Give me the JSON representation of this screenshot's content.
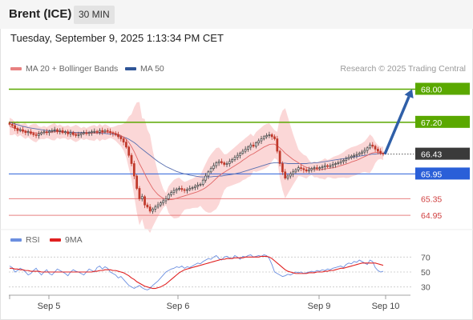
{
  "header": {
    "instrument": "Brent (ICE)",
    "interval": "30 MIN"
  },
  "timestamp": "Tuesday, September 9, 2025 1:13:34 PM CET",
  "legend": {
    "ma20": "MA 20 + Bollinger Bands",
    "ma50": "MA 50"
  },
  "research": "Research © 2025 Trading Central",
  "rsi_legend": {
    "rsi": "RSI",
    "ma9": "9MA"
  },
  "colors": {
    "green": "#5aa800",
    "blue": "#2a5fd8",
    "red_line": "#e88080",
    "current": "#3a3a3a",
    "candle_up": "#3f3f3f",
    "candle_down": "#c0392b",
    "bollinger": "#f9c9c9",
    "ma20": "#e06666",
    "ma50": "#5a70b0",
    "rsi": "#6b8fe0",
    "rsi_ma": "#e02020"
  },
  "chart_data": [
    {
      "type": "candlestick",
      "x_labels": [
        "Sep 5",
        "Sep 6",
        "Sep 9",
        "Sep 10"
      ],
      "ylim": [
        64.7,
        68.3
      ],
      "levels": [
        {
          "value": 68.0,
          "label": "68.00",
          "kind": "resistance"
        },
        {
          "value": 67.2,
          "label": "67.20",
          "kind": "resistance"
        },
        {
          "value": 66.43,
          "label": "66.43",
          "kind": "current"
        },
        {
          "value": 65.95,
          "label": "65.95",
          "kind": "pivot"
        },
        {
          "value": 65.35,
          "label": "65.35",
          "kind": "support"
        },
        {
          "value": 64.95,
          "label": "64.95",
          "kind": "support"
        }
      ],
      "close": [
        67.15,
        67.12,
        67.05,
        67.0,
        67.02,
        66.98,
        66.95,
        66.97,
        66.93,
        66.9,
        66.88,
        66.92,
        66.95,
        66.97,
        66.95,
        66.98,
        67.0,
        67.02,
        66.98,
        67.0,
        66.95,
        66.97,
        66.92,
        66.95,
        66.9,
        66.88,
        66.9,
        66.93,
        66.95,
        66.93,
        66.95,
        66.97,
        66.98,
        66.96,
        67.0,
        66.97,
        67.0,
        66.98,
        66.95,
        66.93,
        66.9,
        66.85,
        66.8,
        66.72,
        66.6,
        66.4,
        66.2,
        65.9,
        65.6,
        65.35,
        65.4,
        65.2,
        65.15,
        65.05,
        65.1,
        65.15,
        65.2,
        65.25,
        65.3,
        65.35,
        65.45,
        65.5,
        65.55,
        65.58,
        65.6,
        65.57,
        65.55,
        65.57,
        65.6,
        65.62,
        65.65,
        65.68,
        65.7,
        65.8,
        65.9,
        66.0,
        66.08,
        66.15,
        66.22,
        66.25,
        66.22,
        66.18,
        66.2,
        66.25,
        66.3,
        66.35,
        66.4,
        66.45,
        66.5,
        66.55,
        66.6,
        66.65,
        66.62,
        66.7,
        66.75,
        66.8,
        66.85,
        66.88,
        66.9,
        66.85,
        66.8,
        66.5,
        66.2,
        66.0,
        65.85,
        65.9,
        65.95,
        66.0,
        66.05,
        66.1,
        66.08,
        66.05,
        66.02,
        66.05,
        66.08,
        66.1,
        66.08,
        66.1,
        66.12,
        66.15,
        66.13,
        66.15,
        66.18,
        66.2,
        66.22,
        66.25,
        66.28,
        66.32,
        66.35,
        66.38,
        66.4,
        66.42,
        66.45,
        66.48,
        66.52,
        66.58,
        66.65,
        66.62,
        66.55,
        66.5,
        66.45,
        66.43
      ],
      "projection": {
        "from": 66.43,
        "to": 68.0
      },
      "ma20": [
        67.1,
        67.08,
        67.06,
        67.04,
        67.02,
        67.0,
        66.99,
        66.97,
        66.96,
        66.95,
        66.94,
        66.94,
        66.94,
        66.95,
        66.95,
        66.96,
        66.96,
        66.97,
        66.97,
        66.97,
        66.96,
        66.96,
        66.95,
        66.94,
        66.93,
        66.93,
        66.93,
        66.93,
        66.93,
        66.93,
        66.93,
        66.94,
        66.94,
        66.95,
        66.95,
        66.95,
        66.96,
        66.96,
        66.95,
        66.94,
        66.93,
        66.91,
        66.88,
        66.84,
        66.79,
        66.71,
        66.61,
        66.49,
        66.35,
        66.2,
        66.08,
        65.95,
        65.82,
        65.71,
        65.6,
        65.52,
        65.45,
        65.4,
        65.36,
        65.34,
        65.33,
        65.33,
        65.34,
        65.36,
        65.38,
        65.4,
        65.42,
        65.44,
        65.46,
        65.48,
        65.5,
        65.52,
        65.55,
        65.58,
        65.62,
        65.67,
        65.72,
        65.78,
        65.84,
        65.9,
        65.95,
        65.99,
        66.03,
        66.07,
        66.11,
        66.15,
        66.19,
        66.23,
        66.28,
        66.32,
        66.37,
        66.41,
        66.44,
        66.48,
        66.52,
        66.56,
        66.6,
        66.63,
        66.66,
        66.67,
        66.67,
        66.63,
        66.58,
        66.52,
        66.45,
        66.4,
        66.35,
        66.3,
        66.26,
        66.22,
        66.18,
        66.14,
        66.11,
        66.09,
        66.07,
        66.06,
        66.05,
        66.05,
        66.06,
        66.07,
        66.08,
        66.09,
        66.1,
        66.11,
        66.13,
        66.15,
        66.17,
        66.19,
        66.21,
        66.24,
        66.26,
        66.28,
        66.31,
        66.34,
        66.37,
        66.4,
        66.44,
        66.46,
        66.47,
        66.47,
        66.46,
        66.45
      ],
      "ma50": [
        67.2,
        67.18,
        67.16,
        67.14,
        67.12,
        67.1,
        67.09,
        67.07,
        67.06,
        67.05,
        67.04,
        67.03,
        67.02,
        67.01,
        67.0,
        67.0,
        66.99,
        66.99,
        66.98,
        66.98,
        66.97,
        66.97,
        66.96,
        66.96,
        66.96,
        66.95,
        66.95,
        66.95,
        66.95,
        66.95,
        66.95,
        66.95,
        66.94,
        66.94,
        66.94,
        66.93,
        66.93,
        66.92,
        66.92,
        66.91,
        66.9,
        66.88,
        66.86,
        66.84,
        66.82,
        66.79,
        66.75,
        66.71,
        66.66,
        66.6,
        66.55,
        66.5,
        66.45,
        66.4,
        66.35,
        66.3,
        66.25,
        66.21,
        66.17,
        66.13,
        66.1,
        66.07,
        66.04,
        66.01,
        65.99,
        65.97,
        65.95,
        65.94,
        65.92,
        65.91,
        65.9,
        65.89,
        65.88,
        65.88,
        65.88,
        65.88,
        65.88,
        65.89,
        65.89,
        65.9,
        65.9,
        65.91,
        65.92,
        65.93,
        65.94,
        65.95,
        65.97,
        65.98,
        66.0,
        66.02,
        66.04,
        66.06,
        66.08,
        66.1,
        66.12,
        66.14,
        66.16,
        66.18,
        66.2,
        66.21,
        66.22,
        66.22,
        66.22,
        66.21,
        66.21,
        66.2,
        66.2,
        66.2,
        66.2,
        66.2,
        66.2,
        66.2,
        66.2,
        66.21,
        66.21,
        66.22,
        66.22,
        66.23,
        66.24,
        66.25,
        66.26,
        66.27,
        66.28,
        66.29,
        66.3,
        66.31,
        66.32,
        66.33,
        66.34,
        66.35,
        66.36,
        66.37,
        66.38,
        66.39,
        66.4,
        66.41,
        66.42,
        66.43,
        66.43,
        66.44,
        66.44,
        66.44
      ]
    },
    {
      "type": "line",
      "name": "RSI",
      "yticks": [
        70,
        50,
        30
      ],
      "ylim": [
        20,
        80
      ],
      "series": [
        {
          "name": "RSI",
          "values": [
            58,
            56,
            50,
            52,
            55,
            53,
            50,
            46,
            48,
            52,
            55,
            50,
            46,
            50,
            53,
            48,
            46,
            50,
            54,
            52,
            50,
            48,
            45,
            50,
            53,
            51,
            50,
            48,
            46,
            50,
            54,
            52,
            50,
            56,
            58,
            54,
            57,
            55,
            50,
            48,
            46,
            42,
            44,
            40,
            36,
            32,
            30,
            28,
            30,
            32,
            29,
            27,
            26,
            28,
            32,
            35,
            38,
            42,
            46,
            50,
            52,
            54,
            55,
            57,
            56,
            58,
            55,
            57,
            56,
            58,
            60,
            62,
            61,
            64,
            66,
            68,
            67,
            70,
            72,
            68,
            66,
            70,
            71,
            69,
            68,
            72,
            70,
            67,
            71,
            70,
            72,
            73,
            70,
            71,
            72,
            71,
            73,
            72,
            68,
            60,
            50,
            48,
            46,
            44,
            45,
            47,
            46,
            48,
            50,
            49,
            50,
            48,
            49,
            50,
            51,
            50,
            52,
            51,
            53,
            52,
            54,
            53,
            55,
            56,
            57,
            58,
            56,
            60,
            62,
            61,
            64,
            63,
            66,
            64,
            62,
            60,
            66,
            64,
            56,
            52,
            50,
            51
          ]
        },
        {
          "name": "9MA",
          "values": [
            55,
            55,
            54,
            54,
            53,
            53,
            52,
            52,
            51,
            51,
            51,
            51,
            50,
            50,
            50,
            50,
            50,
            50,
            50,
            50,
            50,
            50,
            50,
            50,
            50,
            50,
            50,
            50,
            50,
            50,
            50,
            50,
            51,
            51,
            52,
            52,
            53,
            53,
            53,
            52,
            52,
            51,
            50,
            49,
            47,
            45,
            42,
            40,
            37,
            35,
            33,
            31,
            30,
            29,
            28,
            28,
            29,
            30,
            32,
            34,
            37,
            40,
            43,
            46,
            49,
            51,
            53,
            54,
            55,
            56,
            57,
            58,
            59,
            60,
            61,
            62,
            63,
            64,
            65,
            66,
            67,
            67,
            68,
            68,
            68,
            69,
            69,
            69,
            69,
            70,
            70,
            70,
            70,
            70,
            70,
            71,
            71,
            71,
            70,
            68,
            65,
            62,
            59,
            56,
            53,
            51,
            50,
            49,
            48,
            48,
            48,
            48,
            48,
            49,
            49,
            49,
            50,
            50,
            50,
            51,
            51,
            52,
            52,
            53,
            54,
            55,
            55,
            56,
            57,
            58,
            59,
            60,
            61,
            62,
            62,
            62,
            62,
            62,
            62,
            61,
            60,
            59
          ]
        }
      ]
    }
  ]
}
